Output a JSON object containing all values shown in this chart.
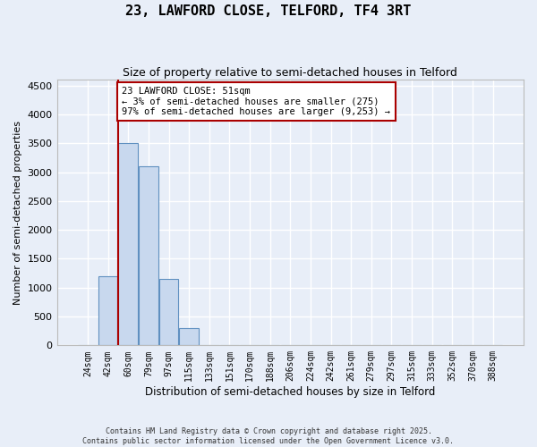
{
  "title": "23, LAWFORD CLOSE, TELFORD, TF4 3RT",
  "subtitle": "Size of property relative to semi-detached houses in Telford",
  "xlabel": "Distribution of semi-detached houses by size in Telford",
  "ylabel": "Number of semi-detached properties",
  "bar_labels": [
    "24sqm",
    "42sqm",
    "60sqm",
    "79sqm",
    "97sqm",
    "115sqm",
    "133sqm",
    "151sqm",
    "170sqm",
    "188sqm",
    "206sqm",
    "224sqm",
    "242sqm",
    "261sqm",
    "279sqm",
    "297sqm",
    "315sqm",
    "333sqm",
    "352sqm",
    "370sqm",
    "388sqm"
  ],
  "bar_values": [
    0,
    1200,
    3500,
    3100,
    1150,
    300,
    0,
    0,
    0,
    0,
    0,
    0,
    0,
    0,
    0,
    0,
    0,
    0,
    0,
    0,
    0
  ],
  "bar_color": "#c8d8ee",
  "bar_edge_color": "#6090c0",
  "ylim": [
    0,
    4600
  ],
  "yticks": [
    0,
    500,
    1000,
    1500,
    2000,
    2500,
    3000,
    3500,
    4000,
    4500
  ],
  "property_line_x": 1.5,
  "annotation_title": "23 LAWFORD CLOSE: 51sqm",
  "annotation_line1": "← 3% of semi-detached houses are smaller (275)",
  "annotation_line2": "97% of semi-detached houses are larger (9,253) →",
  "red_line_color": "#aa0000",
  "annotation_box_color": "#aa0000",
  "background_color": "#e8eef8",
  "grid_color": "#ffffff",
  "footer_line1": "Contains HM Land Registry data © Crown copyright and database right 2025.",
  "footer_line2": "Contains public sector information licensed under the Open Government Licence v3.0."
}
